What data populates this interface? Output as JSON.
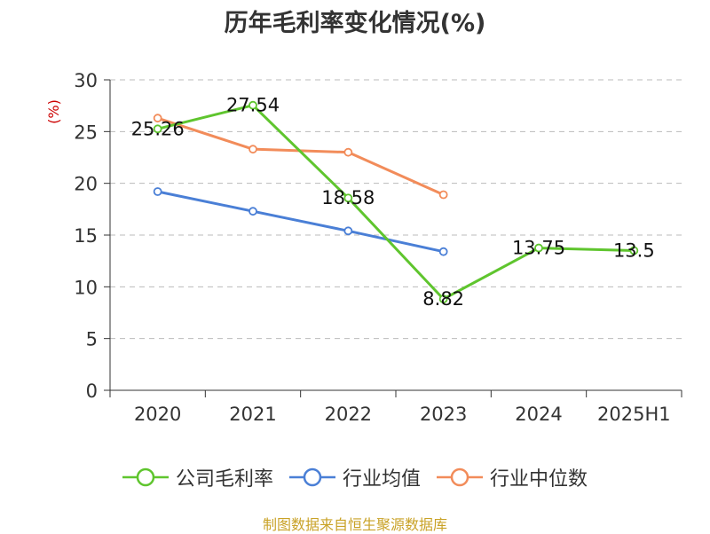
{
  "chart_data": {
    "type": "line",
    "title": "历年毛利率变化情况(%)",
    "ylabel": "(%)",
    "categories": [
      "2020",
      "2021",
      "2022",
      "2023",
      "2024",
      "2025H1"
    ],
    "ylim": [
      0,
      30
    ],
    "yticks": [
      0,
      5,
      10,
      15,
      20,
      25,
      30
    ],
    "grid": true,
    "legend_position": "bottom",
    "series": [
      {
        "name": "公司毛利率",
        "color": "#5fc52e",
        "values": [
          25.26,
          27.54,
          18.58,
          8.82,
          13.75,
          13.5
        ],
        "labels": [
          "25.26",
          "27.54",
          "18.58",
          "8.82",
          "13.75",
          "13.5"
        ]
      },
      {
        "name": "行业均值",
        "color": "#4a7fd6",
        "values": [
          19.2,
          17.3,
          15.4,
          13.4,
          null,
          null
        ]
      },
      {
        "name": "行业中位数",
        "color": "#f28c5a",
        "values": [
          26.3,
          23.3,
          23.0,
          18.9,
          null,
          null
        ]
      }
    ]
  },
  "source": "制图数据来自恒生聚源数据库"
}
